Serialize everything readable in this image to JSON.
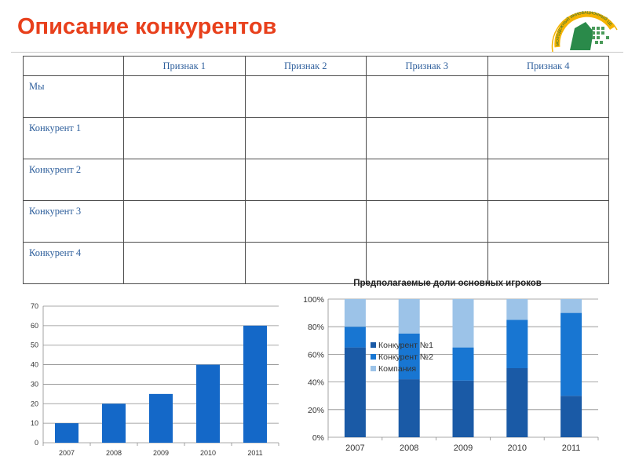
{
  "page": {
    "title": "Описание конкурентов",
    "logo_text": "МОЛОДЕЖНЫЙ ИННОВАЦИОННЫЙ ЦЕНТР",
    "colors": {
      "title": "#e8401c",
      "table_text": "#2e5f9c",
      "bar": "#1468c8",
      "series": [
        "#1a5aa6",
        "#1876d2",
        "#9cc3e8"
      ]
    }
  },
  "table": {
    "headers": [
      "",
      "Признак 1",
      "Признак 2",
      "Признак 3",
      "Признак 4"
    ],
    "rows": [
      {
        "label": "Мы"
      },
      {
        "label": "Конкурент 1"
      },
      {
        "label": "Конкурент 2"
      },
      {
        "label": "Конкурент 3"
      },
      {
        "label": "Конкурент 4"
      }
    ]
  },
  "chart_data": [
    {
      "type": "bar",
      "categories": [
        "2007",
        "2008",
        "2009",
        "2010",
        "2011"
      ],
      "values": [
        10,
        20,
        25,
        40,
        60
      ],
      "ylim": [
        0,
        70
      ],
      "yticks": [
        "0",
        "10",
        "20",
        "30",
        "40",
        "50",
        "60",
        "70"
      ],
      "grid": true
    },
    {
      "type": "bar",
      "stacked": true,
      "title": "Предполагаемые доли основных игроков",
      "categories": [
        "2007",
        "2008",
        "2009",
        "2010",
        "2011"
      ],
      "series": [
        {
          "name": "Конкурент №1",
          "values": [
            65,
            42,
            41,
            50,
            30
          ]
        },
        {
          "name": "Конкурент №2",
          "values": [
            15,
            33,
            24,
            35,
            60
          ]
        },
        {
          "name": "Компания",
          "values": [
            20,
            25,
            35,
            15,
            10
          ]
        }
      ],
      "ylim": [
        0,
        100
      ],
      "yticks": [
        "0%",
        "20%",
        "40%",
        "60%",
        "80%",
        "100%"
      ],
      "legend": "inside-top-left",
      "grid": true
    }
  ]
}
